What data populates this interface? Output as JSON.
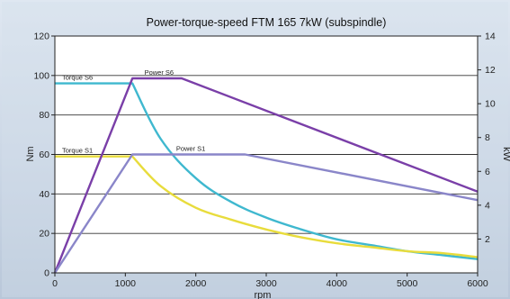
{
  "chart_data": {
    "type": "line",
    "title": "Power-torque-speed FTM 165 7kW (subspindle)",
    "xlabel": "rpm",
    "ylabel_left": "Nm",
    "ylabel_right": "kW",
    "xlim": [
      0,
      6000
    ],
    "ylim_left": [
      0,
      120
    ],
    "ylim_right": [
      0,
      14
    ],
    "x_ticks": [
      0,
      1000,
      2000,
      3000,
      4000,
      5000,
      6000
    ],
    "y_ticks_left": [
      0,
      20,
      40,
      60,
      80,
      100,
      120
    ],
    "y_ticks_right": [
      2,
      4,
      6,
      8,
      10,
      12,
      14
    ],
    "grid": "horizontal",
    "series": [
      {
        "name": "Torque S6",
        "axis": "left",
        "color": "#3fb8cf",
        "x": [
          0,
          1100,
          1500,
          2000,
          2500,
          3000,
          3500,
          4000,
          4500,
          5000,
          5500,
          6000
        ],
        "y": [
          96,
          96,
          68,
          48,
          36,
          28,
          22,
          17,
          14,
          11,
          9,
          7
        ]
      },
      {
        "name": "Torque S1",
        "axis": "left",
        "color": "#e8dc3c",
        "x": [
          0,
          1100,
          1500,
          2000,
          2500,
          3000,
          3500,
          4000,
          4500,
          5000,
          5500,
          6000
        ],
        "y": [
          59,
          59,
          44,
          33,
          27,
          22,
          18,
          15,
          13,
          11,
          10,
          8
        ]
      },
      {
        "name": "Power S6",
        "axis": "right",
        "color": "#7a3fa8",
        "x": [
          0,
          1100,
          1800,
          6000
        ],
        "y": [
          0,
          11.5,
          11.5,
          4.8
        ]
      },
      {
        "name": "Power S1",
        "axis": "right",
        "color": "#8a86c9",
        "x": [
          0,
          1100,
          2700,
          6000
        ],
        "y": [
          0,
          7,
          7,
          4.3
        ]
      }
    ]
  }
}
